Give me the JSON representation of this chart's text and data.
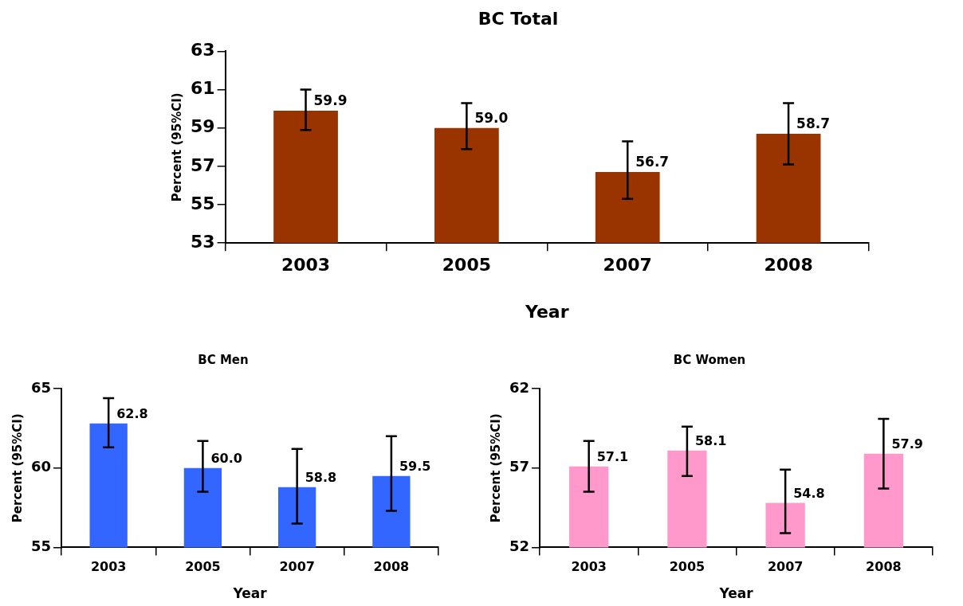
{
  "chart_data": [
    {
      "type": "bar",
      "title": "BC Total",
      "xlabel": "Year",
      "ylabel": "Percent (95%CI)",
      "categories": [
        "2003",
        "2005",
        "2007",
        "2008"
      ],
      "series": [
        {
          "color": "#993300",
          "values": [
            59.9,
            59.0,
            56.7,
            58.7
          ],
          "value_labels": [
            "59.9",
            "59.0",
            "56.7",
            "58.7"
          ],
          "errors": [
            [
              58.9,
              61.0
            ],
            [
              57.9,
              60.3
            ],
            [
              55.3,
              58.3
            ],
            [
              57.1,
              60.3
            ]
          ]
        }
      ],
      "ylim": [
        53,
        63
      ],
      "yticks": [
        53,
        55,
        57,
        59,
        61,
        63
      ],
      "grid": false,
      "legend": false
    },
    {
      "type": "bar",
      "title": "BC Men",
      "xlabel": "Year",
      "ylabel": "Percent (95%CI)",
      "categories": [
        "2003",
        "2005",
        "2007",
        "2008"
      ],
      "series": [
        {
          "color": "#3366ff",
          "values": [
            62.8,
            60.0,
            58.8,
            59.5
          ],
          "value_labels": [
            "62.8",
            "60.0",
            "58.8",
            "59.5"
          ],
          "errors": [
            [
              61.3,
              64.4
            ],
            [
              58.5,
              61.7
            ],
            [
              56.5,
              61.2
            ],
            [
              57.3,
              62.0
            ]
          ]
        }
      ],
      "ylim": [
        55,
        65
      ],
      "yticks": [
        55,
        60,
        65
      ],
      "grid": false,
      "legend": false
    },
    {
      "type": "bar",
      "title": "BC Women",
      "xlabel": "Year",
      "ylabel": "Percent (95%CI)",
      "categories": [
        "2003",
        "2005",
        "2007",
        "2008"
      ],
      "series": [
        {
          "color": "#ff99cc",
          "values": [
            57.1,
            58.1,
            54.8,
            57.9
          ],
          "value_labels": [
            "57.1",
            "58.1",
            "54.8",
            "57.9"
          ],
          "errors": [
            [
              55.5,
              58.7
            ],
            [
              56.5,
              59.6
            ],
            [
              52.9,
              56.9
            ],
            [
              55.7,
              60.1
            ]
          ]
        }
      ],
      "ylim": [
        52,
        62
      ],
      "yticks": [
        52,
        57,
        62
      ],
      "grid": false,
      "legend": false
    }
  ]
}
